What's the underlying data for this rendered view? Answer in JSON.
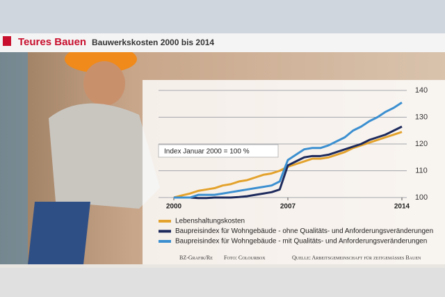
{
  "chart_data": {
    "type": "line",
    "title": "Teures Bauen",
    "subtitle": "Bauwerkskosten 2000 bis 2014",
    "annotation": "Index Januar 2000 = 100 %",
    "credits": [
      "BZ-Grafik/Re",
      "Foto: Colourbox",
      "Quelle: Arbeitsgemeinschaft für zeitgemässes Bauen"
    ],
    "x": [
      2000,
      2000.5,
      2001,
      2001.5,
      2002,
      2002.5,
      2003,
      2003.5,
      2004,
      2004.5,
      2005,
      2005.5,
      2006,
      2006.5,
      2007,
      2007.5,
      2008,
      2008.5,
      2009,
      2009.5,
      2010,
      2010.5,
      2011,
      2011.5,
      2012,
      2012.5,
      2013,
      2013.5,
      2014
    ],
    "series": [
      {
        "name": "Lebenshaltungskosten",
        "color": "#e3a22c",
        "values": [
          100,
          100.8,
          101.5,
          102.5,
          103,
          103.5,
          104.5,
          105,
          106,
          106.5,
          107.5,
          108.5,
          109,
          110,
          111.5,
          112.5,
          113.5,
          114.5,
          114.5,
          115,
          116,
          117,
          118.5,
          119.5,
          120.5,
          121.5,
          122.5,
          123.5,
          124.5
        ]
      },
      {
        "name": "Baupreisindex für Wohngebäude - ohne Qualitäts- und Anforderungsveränderungen",
        "color": "#1d2a5c",
        "values": [
          100,
          100,
          100,
          99.8,
          99.8,
          100,
          100,
          100,
          100.2,
          100.5,
          101,
          101.5,
          102,
          103,
          112,
          113.5,
          115,
          115.5,
          115.5,
          116,
          117,
          118,
          119,
          120,
          121.5,
          122.5,
          123.5,
          125,
          126.5
        ]
      },
      {
        "name": "Baupreisindex für Wohngebäude - mit Qualitäts- und Anforderungsveränderungen",
        "color": "#3b8fd0",
        "values": [
          100,
          100,
          100,
          101,
          101,
          101,
          101.5,
          102,
          102.5,
          103,
          103.5,
          104,
          104.5,
          106,
          114,
          116,
          118,
          118.5,
          118.5,
          119.5,
          121,
          122.5,
          125,
          126.5,
          128.5,
          130,
          132,
          133.5,
          135.5
        ]
      }
    ],
    "xlim": [
      2000,
      2014
    ],
    "xticks": [
      2000,
      2007,
      2014
    ],
    "ylim": [
      100,
      140
    ],
    "yticks": [
      100,
      110,
      120,
      130,
      140
    ],
    "grid": true
  }
}
